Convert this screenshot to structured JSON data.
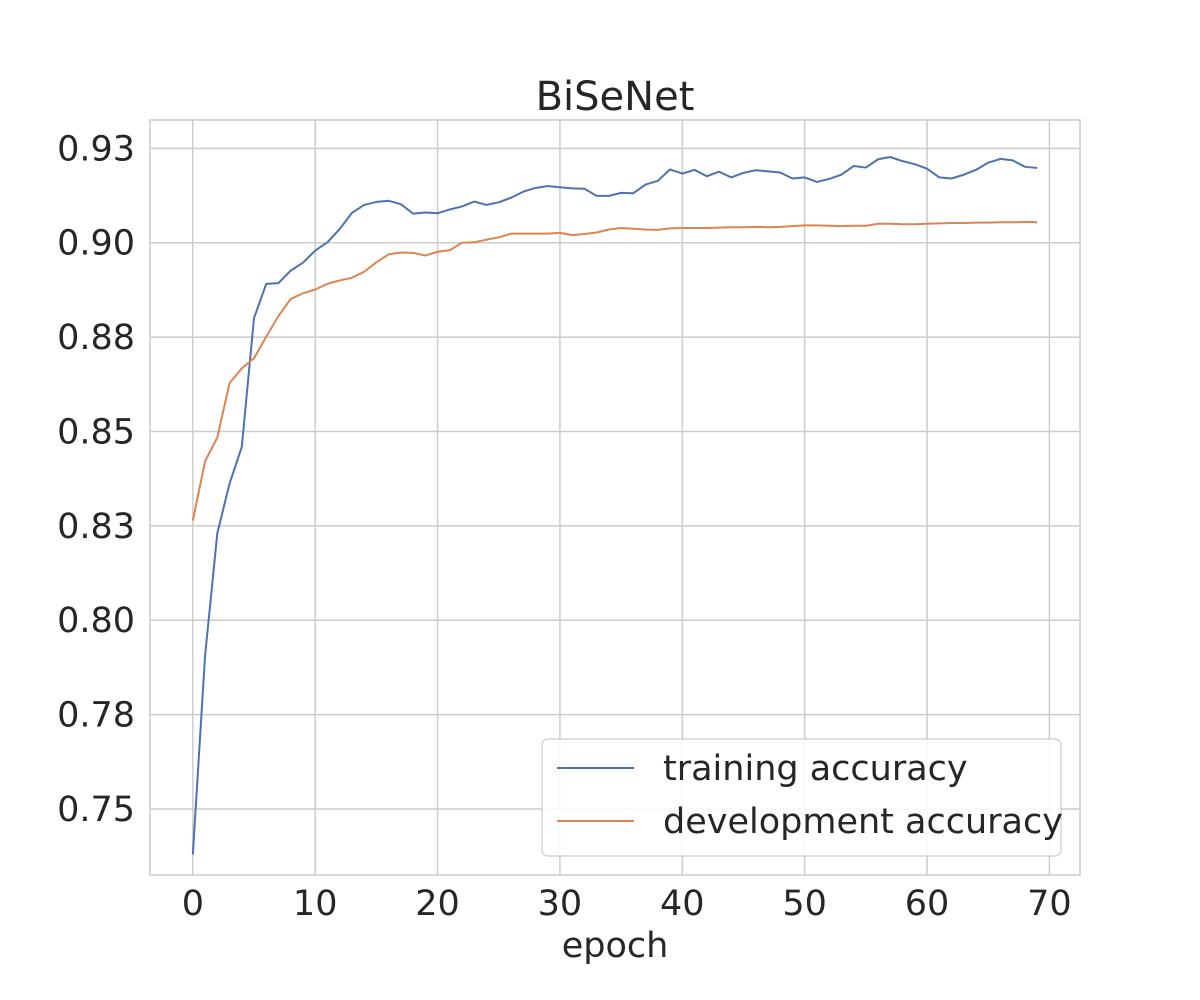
{
  "chart_data": {
    "type": "line",
    "title": "BiSeNet",
    "xlabel": "epoch",
    "ylabel": "",
    "xlim": [
      -3.5,
      72.5
    ],
    "ylim": [
      0.7325,
      0.9325
    ],
    "x_ticks": [
      0,
      10,
      20,
      30,
      40,
      50,
      60,
      70
    ],
    "x_tick_labels": [
      "0",
      "10",
      "20",
      "30",
      "40",
      "50",
      "60",
      "70"
    ],
    "y_ticks": [
      0.75,
      0.775,
      0.8,
      0.825,
      0.85,
      0.875,
      0.9,
      0.925
    ],
    "y_tick_labels": [
      "0.75",
      "0.78",
      "0.80",
      "0.83",
      "0.85",
      "0.88",
      "0.90",
      "0.93"
    ],
    "grid": true,
    "legend_position": "lower-right",
    "x": [
      0,
      1,
      2,
      3,
      4,
      5,
      6,
      7,
      8,
      9,
      10,
      11,
      12,
      13,
      14,
      15,
      16,
      17,
      18,
      19,
      20,
      21,
      22,
      23,
      24,
      25,
      26,
      27,
      28,
      29,
      30,
      31,
      32,
      33,
      34,
      35,
      36,
      37,
      38,
      39,
      40,
      41,
      42,
      43,
      44,
      45,
      46,
      47,
      48,
      49,
      50,
      51,
      52,
      53,
      54,
      55,
      56,
      57,
      58,
      59,
      60,
      61,
      62,
      63,
      64,
      65,
      66,
      67,
      68,
      69
    ],
    "series": [
      {
        "name": "training accuracy",
        "color": "#4c72b0",
        "values": [
          0.7379,
          0.7906,
          0.823,
          0.8362,
          0.8459,
          0.88,
          0.8891,
          0.8893,
          0.8926,
          0.8947,
          0.8979,
          0.9001,
          0.9036,
          0.9079,
          0.91,
          0.9108,
          0.9111,
          0.9102,
          0.9077,
          0.908,
          0.9078,
          0.9088,
          0.9096,
          0.9109,
          0.91,
          0.9107,
          0.9119,
          0.9135,
          0.9145,
          0.915,
          0.9147,
          0.9144,
          0.9143,
          0.9124,
          0.9124,
          0.9132,
          0.9131,
          0.9154,
          0.9164,
          0.9194,
          0.9183,
          0.9193,
          0.9176,
          0.9188,
          0.9173,
          0.9185,
          0.9192,
          0.9189,
          0.9186,
          0.917,
          0.9173,
          0.9161,
          0.9169,
          0.918,
          0.9203,
          0.9199,
          0.9221,
          0.9227,
          0.9216,
          0.9208,
          0.9196,
          0.9173,
          0.917,
          0.918,
          0.9193,
          0.9212,
          0.9222,
          0.9218,
          0.9201,
          0.9198
        ]
      },
      {
        "name": "development accuracy",
        "color": "#dd8452",
        "values": [
          0.8264,
          0.8421,
          0.8484,
          0.8628,
          0.8667,
          0.8694,
          0.8751,
          0.8806,
          0.8851,
          0.8866,
          0.8876,
          0.8891,
          0.89,
          0.8907,
          0.8923,
          0.8948,
          0.8969,
          0.8974,
          0.8973,
          0.8966,
          0.8976,
          0.898,
          0.9,
          0.9001,
          0.9008,
          0.9014,
          0.9024,
          0.9024,
          0.9024,
          0.9024,
          0.9026,
          0.902,
          0.9023,
          0.9027,
          0.9035,
          0.9039,
          0.9037,
          0.9035,
          0.9034,
          0.9038,
          0.9039,
          0.9039,
          0.9039,
          0.904,
          0.9041,
          0.9041,
          0.9042,
          0.9041,
          0.9042,
          0.9044,
          0.9046,
          0.9046,
          0.9045,
          0.9044,
          0.9045,
          0.9045,
          0.905,
          0.905,
          0.9049,
          0.9049,
          0.905,
          0.9051,
          0.9052,
          0.9052,
          0.9053,
          0.9053,
          0.9054,
          0.9054,
          0.9055,
          0.9054
        ]
      }
    ]
  }
}
